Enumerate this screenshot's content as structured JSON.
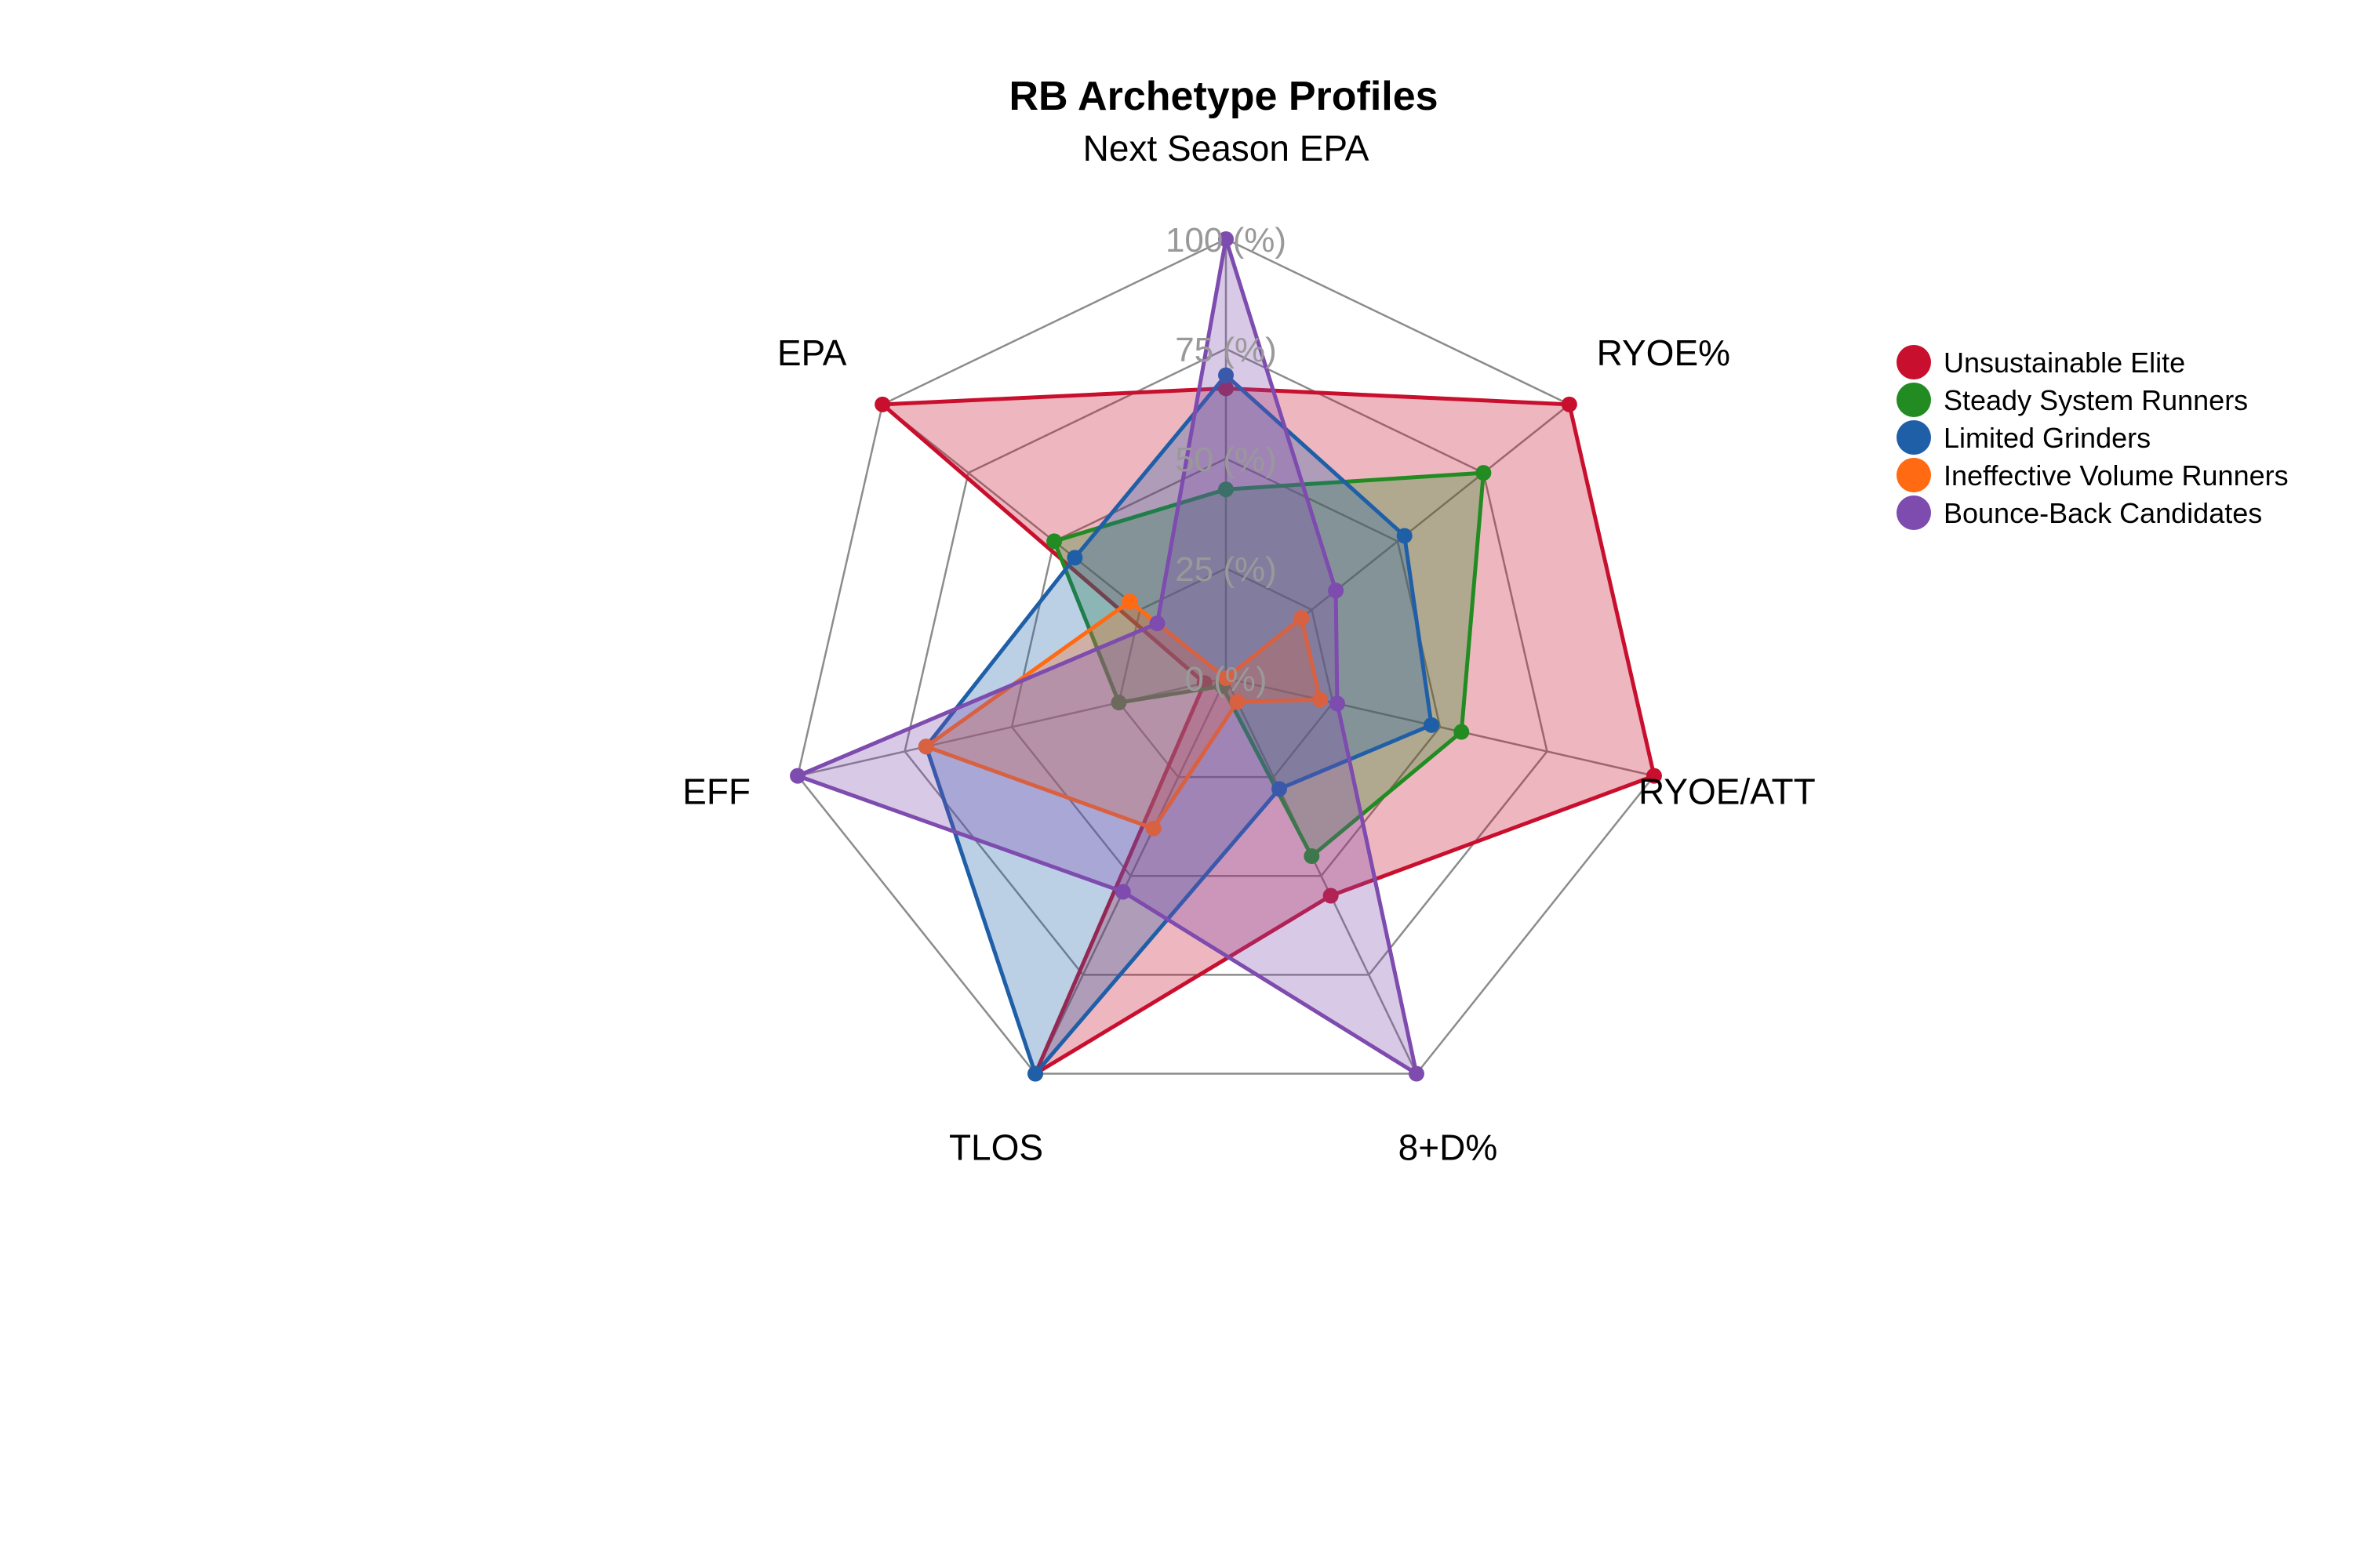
{
  "chart_data": {
    "type": "radar",
    "title": "RB Archetype Profiles",
    "axes": [
      "Next Season EPA",
      "RYOE%",
      "RYOE/ATT",
      "8+D%",
      "TLOS",
      "EFF",
      "EPA"
    ],
    "ring_values": [
      0,
      25,
      50,
      75,
      100
    ],
    "ring_labels": [
      "0 (%)",
      "25 (%)",
      "50 (%)",
      "75 (%)",
      "100 (%)"
    ],
    "range": [
      0,
      100
    ],
    "grid": true,
    "legend_position": "right",
    "series": [
      {
        "name": "Unsustainable Elite",
        "color": "#C8102E",
        "values": [
          66,
          100,
          100,
          55,
          100,
          5,
          100
        ]
      },
      {
        "name": "Steady System Runners",
        "color": "#228B22",
        "values": [
          43,
          75,
          55,
          45,
          2,
          25,
          50
        ]
      },
      {
        "name": "Limited Grinders",
        "color": "#1F5FA8",
        "values": [
          69,
          52,
          48,
          28,
          100,
          70,
          44
        ]
      },
      {
        "name": "Ineffective Volume Runners",
        "color": "#FF6A13",
        "values": [
          0,
          22,
          22,
          6,
          38,
          70,
          28
        ]
      },
      {
        "name": "Bounce-Back Candidates",
        "color": "#7E4BAE",
        "values": [
          100,
          32,
          26,
          100,
          54,
          100,
          20
        ]
      }
    ]
  }
}
